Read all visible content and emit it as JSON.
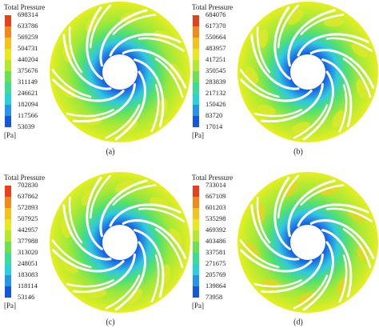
{
  "panels": [
    {
      "legend_title": "Total Pressure",
      "ticks": [
        698314,
        633786,
        569259,
        504731,
        440204,
        375676,
        311149,
        246621,
        182094,
        117566,
        53039
      ],
      "unit": "[Pa]",
      "caption": "(a)"
    },
    {
      "legend_title": "Total Pressure",
      "ticks": [
        684076,
        617370,
        550664,
        483957,
        417251,
        350545,
        283839,
        217132,
        150426,
        83720,
        17014
      ],
      "unit": "[Pa]",
      "caption": "(b)"
    },
    {
      "legend_title": "Total Pressure",
      "ticks": [
        702830,
        637862,
        572893,
        507925,
        442957,
        377988,
        313020,
        248051,
        183083,
        118114,
        53146
      ],
      "unit": "[Pa]",
      "caption": "(c)"
    },
    {
      "legend_title": "Total Pressure",
      "ticks": [
        733014,
        667109,
        601203,
        535298,
        469392,
        403486,
        337581,
        271675,
        205769,
        139864,
        73958
      ],
      "unit": "[Pa]",
      "caption": "(d)"
    }
  ]
}
